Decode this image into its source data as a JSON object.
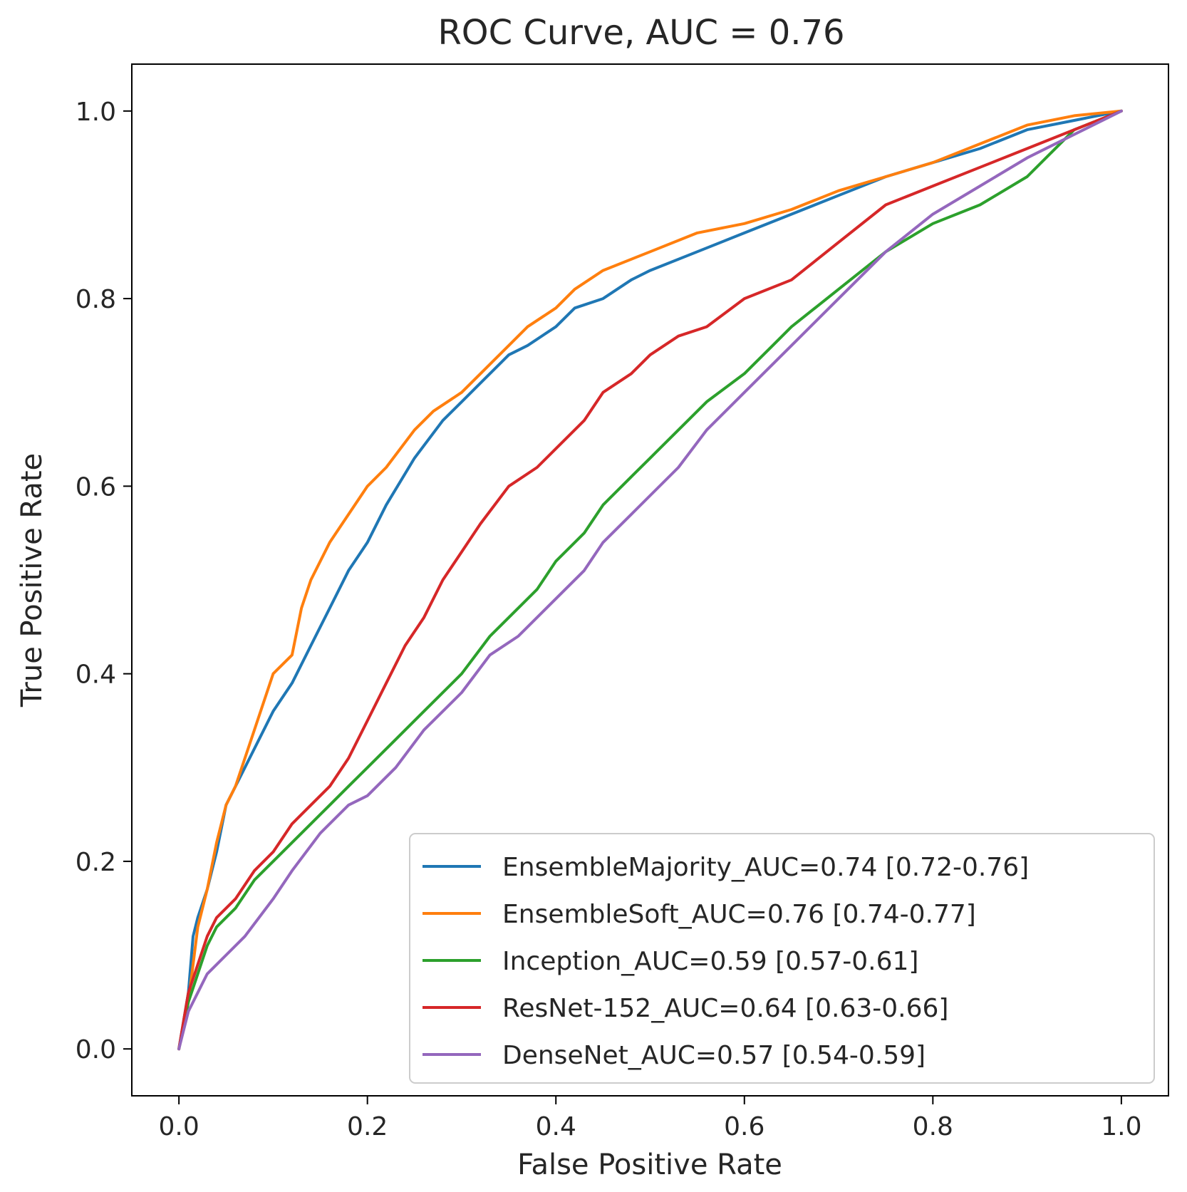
{
  "chart_data": {
    "type": "line",
    "title": "ROC Curve, AUC = 0.76",
    "xlabel": "False Positive Rate",
    "ylabel": "True Positive Rate",
    "xlim": [
      -0.05,
      1.05
    ],
    "ylim": [
      -0.05,
      1.05
    ],
    "xticks": [
      0.0,
      0.2,
      0.4,
      0.6,
      0.8,
      1.0
    ],
    "yticks": [
      0.0,
      0.2,
      0.4,
      0.6,
      0.8,
      1.0
    ],
    "xtick_labels": [
      "0.0",
      "0.2",
      "0.4",
      "0.6",
      "0.8",
      "1.0"
    ],
    "ytick_labels": [
      "0.0",
      "0.2",
      "0.4",
      "0.6",
      "0.8",
      "1.0"
    ],
    "grid": false,
    "legend_position": "lower-right",
    "series": [
      {
        "name": "EnsembleMajority_AUC=0.74 [0.72-0.76]",
        "color": "#1f77b4",
        "x": [
          0.0,
          0.01,
          0.015,
          0.02,
          0.03,
          0.04,
          0.05,
          0.06,
          0.08,
          0.1,
          0.12,
          0.14,
          0.16,
          0.18,
          0.2,
          0.22,
          0.25,
          0.28,
          0.3,
          0.32,
          0.35,
          0.37,
          0.4,
          0.42,
          0.45,
          0.48,
          0.5,
          0.55,
          0.6,
          0.65,
          0.7,
          0.75,
          0.8,
          0.85,
          0.9,
          0.95,
          1.0
        ],
        "y": [
          0.0,
          0.06,
          0.12,
          0.14,
          0.17,
          0.21,
          0.26,
          0.28,
          0.32,
          0.36,
          0.39,
          0.43,
          0.47,
          0.51,
          0.54,
          0.58,
          0.63,
          0.67,
          0.69,
          0.71,
          0.74,
          0.75,
          0.77,
          0.79,
          0.8,
          0.82,
          0.83,
          0.85,
          0.87,
          0.89,
          0.91,
          0.93,
          0.945,
          0.96,
          0.98,
          0.99,
          1.0
        ]
      },
      {
        "name": "EnsembleSoft_AUC=0.76 [0.74-0.77]",
        "color": "#ff7f0e",
        "x": [
          0.0,
          0.01,
          0.015,
          0.02,
          0.03,
          0.04,
          0.05,
          0.06,
          0.08,
          0.1,
          0.12,
          0.13,
          0.14,
          0.16,
          0.18,
          0.2,
          0.22,
          0.25,
          0.27,
          0.3,
          0.32,
          0.35,
          0.37,
          0.4,
          0.42,
          0.45,
          0.5,
          0.55,
          0.6,
          0.65,
          0.7,
          0.75,
          0.8,
          0.85,
          0.9,
          0.95,
          1.0
        ],
        "y": [
          0.0,
          0.05,
          0.09,
          0.13,
          0.17,
          0.22,
          0.26,
          0.28,
          0.34,
          0.4,
          0.42,
          0.47,
          0.5,
          0.54,
          0.57,
          0.6,
          0.62,
          0.66,
          0.68,
          0.7,
          0.72,
          0.75,
          0.77,
          0.79,
          0.81,
          0.83,
          0.85,
          0.87,
          0.88,
          0.895,
          0.915,
          0.93,
          0.945,
          0.965,
          0.985,
          0.995,
          1.0
        ]
      },
      {
        "name": "Inception_AUC=0.59 [0.57-0.61]",
        "color": "#2ca02c",
        "x": [
          0.0,
          0.01,
          0.02,
          0.03,
          0.04,
          0.06,
          0.08,
          0.1,
          0.12,
          0.14,
          0.16,
          0.18,
          0.2,
          0.23,
          0.26,
          0.3,
          0.33,
          0.35,
          0.38,
          0.4,
          0.43,
          0.45,
          0.48,
          0.5,
          0.53,
          0.56,
          0.6,
          0.63,
          0.65,
          0.7,
          0.75,
          0.8,
          0.85,
          0.9,
          0.95,
          1.0
        ],
        "y": [
          0.0,
          0.05,
          0.08,
          0.11,
          0.13,
          0.15,
          0.18,
          0.2,
          0.22,
          0.24,
          0.26,
          0.28,
          0.3,
          0.33,
          0.36,
          0.4,
          0.44,
          0.46,
          0.49,
          0.52,
          0.55,
          0.58,
          0.61,
          0.63,
          0.66,
          0.69,
          0.72,
          0.75,
          0.77,
          0.81,
          0.85,
          0.88,
          0.9,
          0.93,
          0.98,
          1.0
        ]
      },
      {
        "name": "ResNet-152_AUC=0.64 [0.63-0.66]",
        "color": "#d62728",
        "x": [
          0.0,
          0.01,
          0.02,
          0.03,
          0.04,
          0.06,
          0.08,
          0.1,
          0.12,
          0.14,
          0.16,
          0.18,
          0.2,
          0.22,
          0.24,
          0.26,
          0.28,
          0.3,
          0.32,
          0.35,
          0.38,
          0.4,
          0.43,
          0.45,
          0.48,
          0.5,
          0.53,
          0.56,
          0.6,
          0.65,
          0.7,
          0.75,
          0.8,
          0.85,
          0.9,
          0.95,
          1.0
        ],
        "y": [
          0.0,
          0.06,
          0.09,
          0.12,
          0.14,
          0.16,
          0.19,
          0.21,
          0.24,
          0.26,
          0.28,
          0.31,
          0.35,
          0.39,
          0.43,
          0.46,
          0.5,
          0.53,
          0.56,
          0.6,
          0.62,
          0.64,
          0.67,
          0.7,
          0.72,
          0.74,
          0.76,
          0.77,
          0.8,
          0.82,
          0.86,
          0.9,
          0.92,
          0.94,
          0.96,
          0.98,
          1.0
        ]
      },
      {
        "name": "DenseNet_AUC=0.57 [0.54-0.59]",
        "color": "#9467bd",
        "x": [
          0.0,
          0.01,
          0.02,
          0.03,
          0.05,
          0.07,
          0.1,
          0.12,
          0.15,
          0.18,
          0.2,
          0.23,
          0.26,
          0.3,
          0.33,
          0.36,
          0.4,
          0.43,
          0.45,
          0.48,
          0.5,
          0.53,
          0.56,
          0.6,
          0.63,
          0.65,
          0.7,
          0.75,
          0.8,
          0.85,
          0.9,
          0.95,
          1.0
        ],
        "y": [
          0.0,
          0.04,
          0.06,
          0.08,
          0.1,
          0.12,
          0.16,
          0.19,
          0.23,
          0.26,
          0.27,
          0.3,
          0.34,
          0.38,
          0.42,
          0.44,
          0.48,
          0.51,
          0.54,
          0.57,
          0.59,
          0.62,
          0.66,
          0.7,
          0.73,
          0.75,
          0.8,
          0.85,
          0.89,
          0.92,
          0.95,
          0.975,
          1.0
        ]
      }
    ]
  }
}
